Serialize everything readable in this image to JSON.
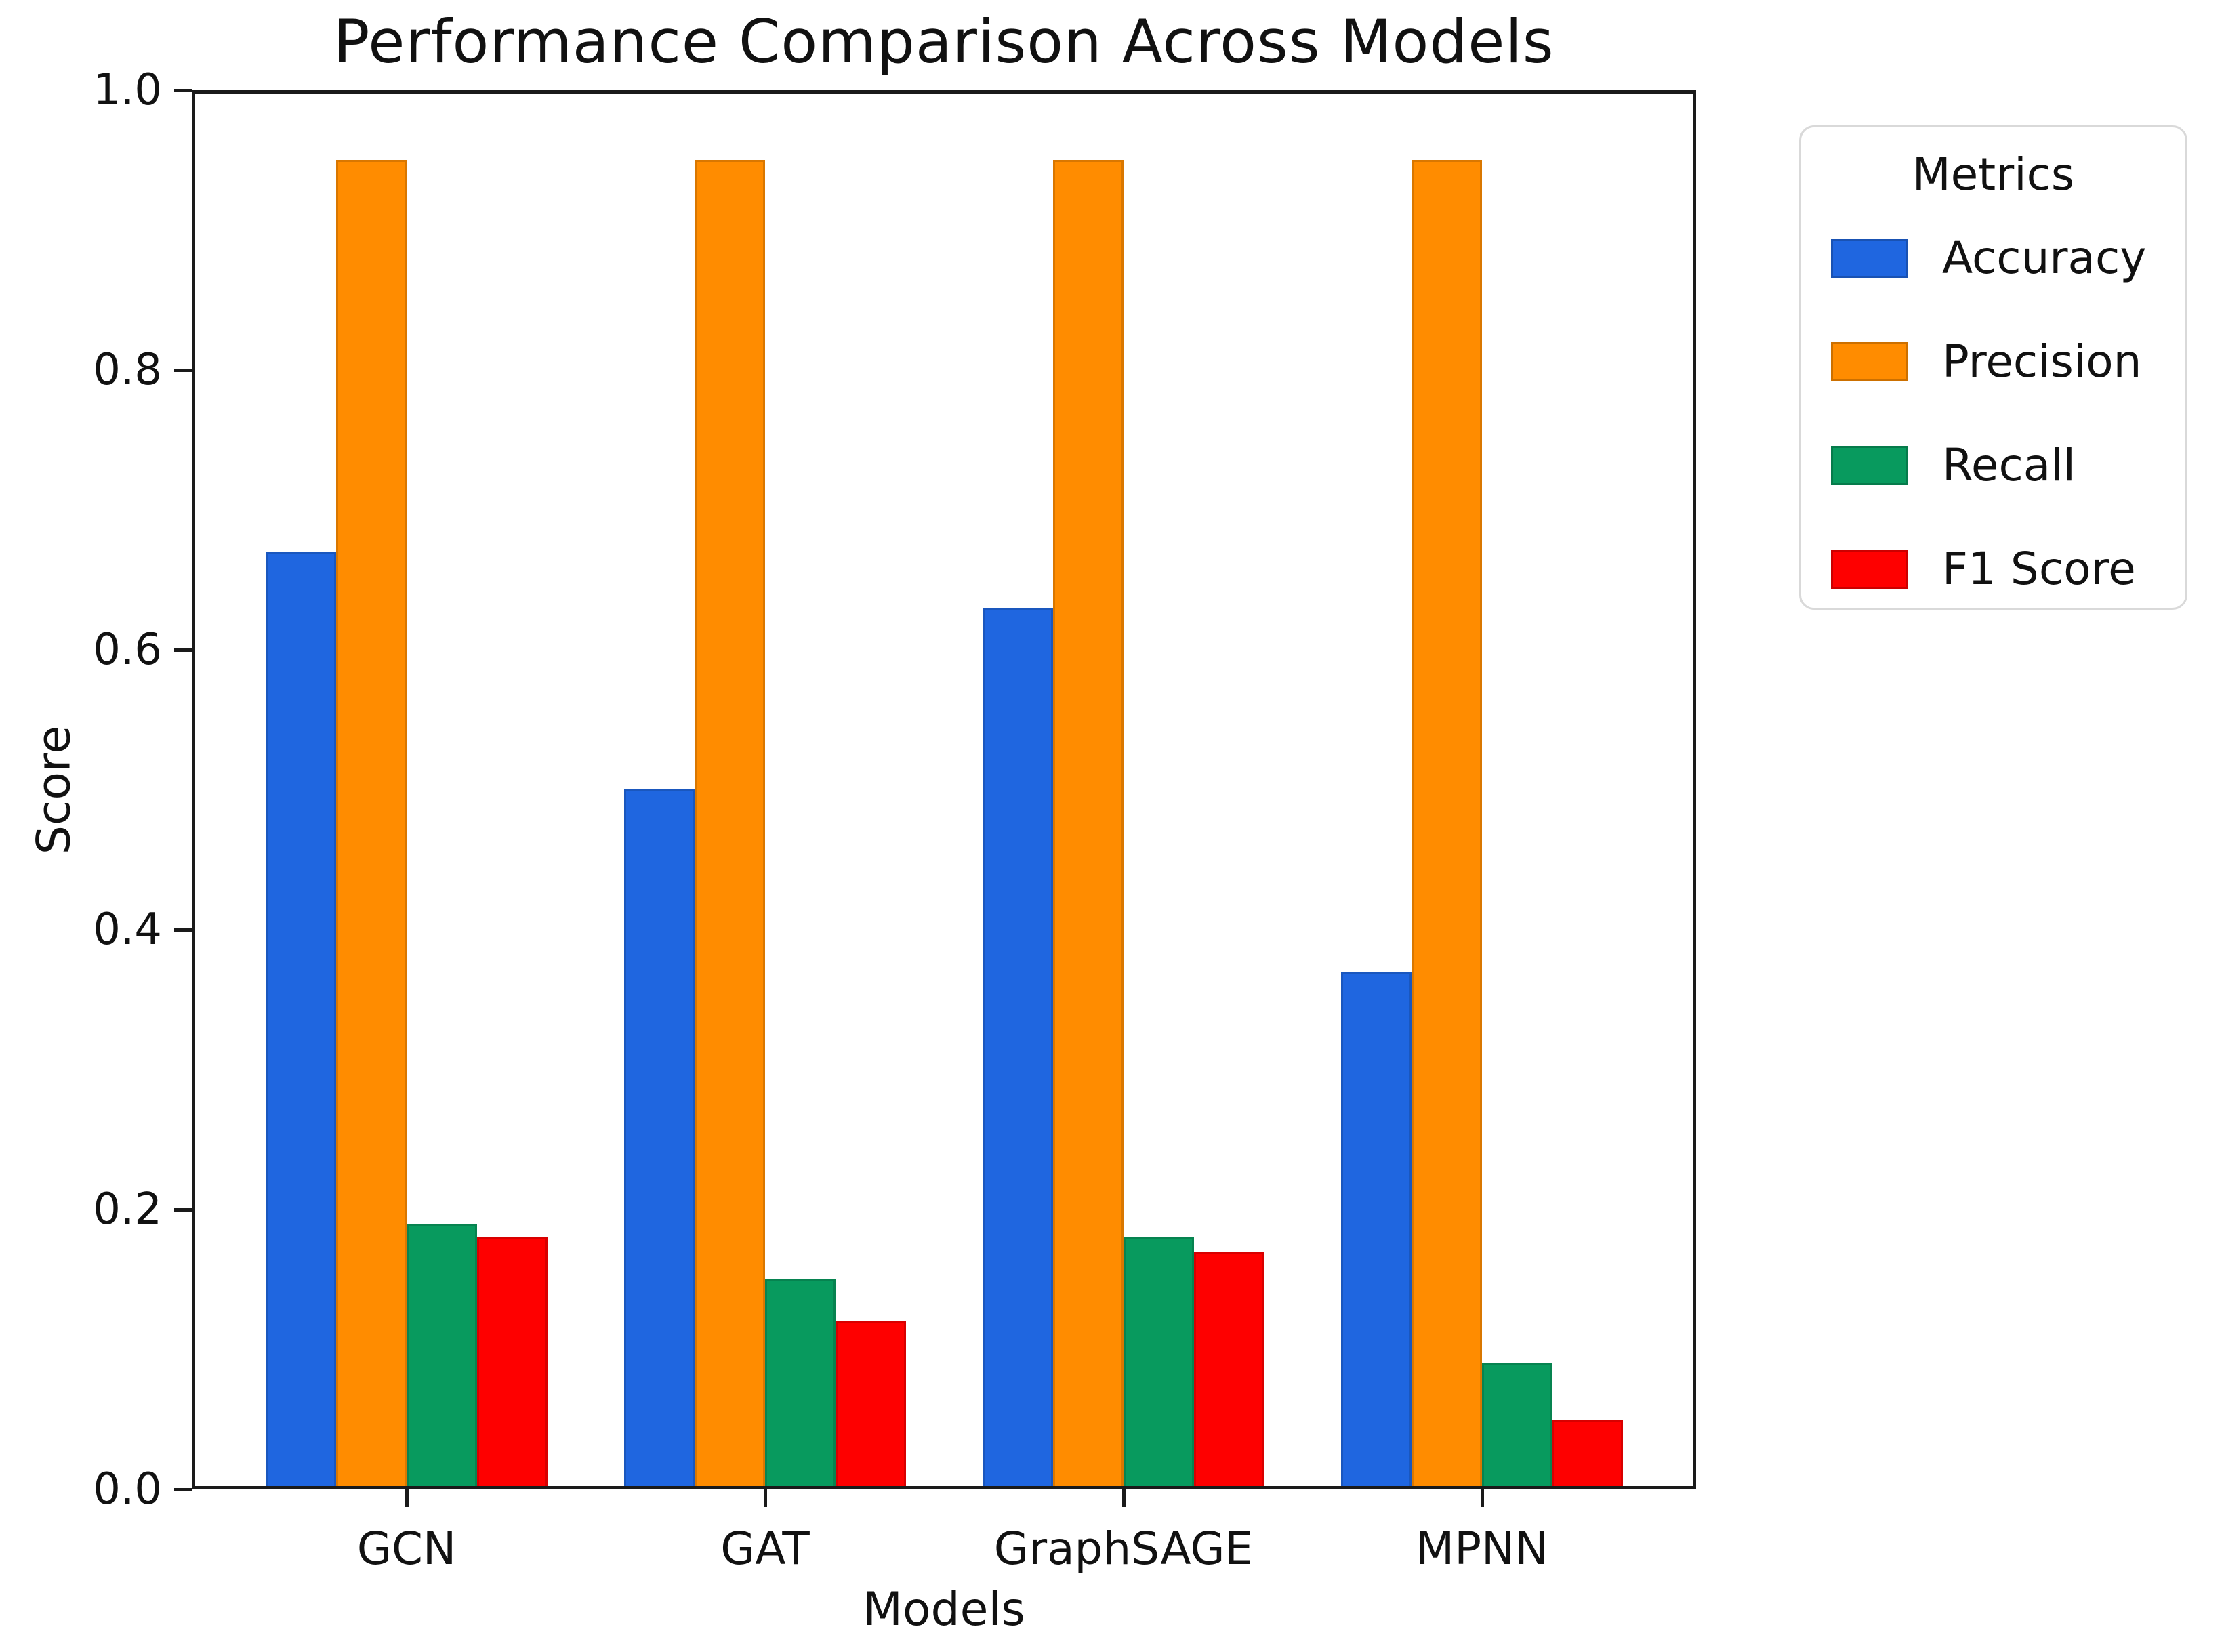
{
  "chart_data": {
    "type": "bar",
    "title": "Performance Comparison Across Models",
    "xlabel": "Models",
    "ylabel": "Score",
    "categories": [
      "GCN",
      "GAT",
      "GraphSAGE",
      "MPNN"
    ],
    "series": [
      {
        "name": "Accuracy",
        "color": "#1f66e0",
        "values": [
          0.67,
          0.5,
          0.63,
          0.37
        ]
      },
      {
        "name": "Precision",
        "color": "#ff8c00",
        "values": [
          0.95,
          0.95,
          0.95,
          0.95
        ]
      },
      {
        "name": "Recall",
        "color": "#089a5e",
        "values": [
          0.19,
          0.15,
          0.18,
          0.09
        ]
      },
      {
        "name": "F1 Score",
        "color": "#fe0000",
        "values": [
          0.18,
          0.12,
          0.17,
          0.05
        ]
      }
    ],
    "ylim": [
      0.0,
      1.0
    ],
    "yticks": [
      "0.0",
      "0.2",
      "0.4",
      "0.6",
      "0.8",
      "1.0"
    ],
    "legend_title": "Metrics",
    "legend_position": "upper right, outside plot",
    "grid": false,
    "axis_color": "#1a1a1a",
    "background_color": "#ffffff"
  }
}
